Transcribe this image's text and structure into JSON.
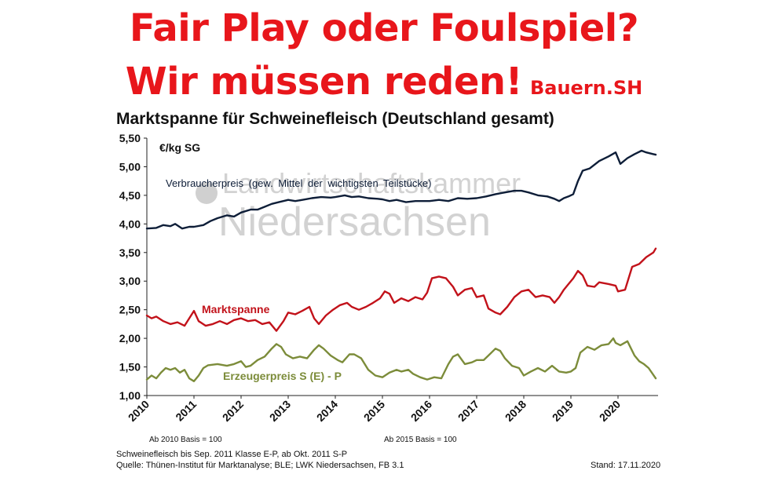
{
  "headline": {
    "line1": "Fair Play oder Foulspiel?",
    "line2": "Wir müssen reden!",
    "brand": "Bauern.SH"
  },
  "watermark": {
    "line1": "Landwirtschaftskammer",
    "line2": "Niedersachsen"
  },
  "notes": {
    "basis_2010": "Ab 2010 Basis = 100",
    "basis_2015": "Ab 2015 Basis = 100"
  },
  "footer": {
    "line1": "Schweinefleisch bis Sep. 2011 Klasse E-P, ab Okt. 2011 S-P",
    "line2": "Quelle: Thünen-Institut für Marktanalyse; BLE; LWK Niedersachsen, FB 3.1",
    "stand": "Stand: 17.11.2020"
  },
  "colors": {
    "headline": "#e8161b",
    "verbraucherpreis": "#0e1e38",
    "marktspanne": "#c2121a",
    "erzeugerpreis": "#7c8c3a"
  },
  "chart_data": {
    "type": "line",
    "title": "Marktspanne für Schweinefleisch (Deutschland gesamt)",
    "unit_label": "€/kg SG",
    "x_ticks": [
      "2010",
      "2011",
      "2012",
      "2013",
      "2014",
      "2015",
      "2016",
      "2017",
      "2018",
      "2019",
      "2020"
    ],
    "y_ticks": [
      "1,00",
      "1,50",
      "2,00",
      "2,50",
      "3,00",
      "3,50",
      "4,00",
      "4,50",
      "5,00",
      "5,50"
    ],
    "xlim": [
      2010,
      2020.85
    ],
    "ylim": [
      1.0,
      5.5
    ],
    "grid": false,
    "series": [
      {
        "name": "Verbraucherpreis (gew. Mittel der wichtigsten Teilstücke)",
        "color": "#0e1e38",
        "points": [
          [
            2010.0,
            3.92
          ],
          [
            2010.2,
            3.93
          ],
          [
            2010.35,
            3.98
          ],
          [
            2010.5,
            3.96
          ],
          [
            2010.6,
            4.0
          ],
          [
            2010.75,
            3.92
          ],
          [
            2010.9,
            3.95
          ],
          [
            2011.0,
            3.95
          ],
          [
            2011.2,
            3.98
          ],
          [
            2011.35,
            4.05
          ],
          [
            2011.5,
            4.1
          ],
          [
            2011.7,
            4.15
          ],
          [
            2011.85,
            4.13
          ],
          [
            2012.0,
            4.2
          ],
          [
            2012.2,
            4.25
          ],
          [
            2012.35,
            4.25
          ],
          [
            2012.5,
            4.3
          ],
          [
            2012.65,
            4.35
          ],
          [
            2012.8,
            4.38
          ],
          [
            2013.0,
            4.42
          ],
          [
            2013.15,
            4.4
          ],
          [
            2013.3,
            4.42
          ],
          [
            2013.5,
            4.45
          ],
          [
            2013.7,
            4.47
          ],
          [
            2013.9,
            4.46
          ],
          [
            2014.0,
            4.47
          ],
          [
            2014.2,
            4.5
          ],
          [
            2014.35,
            4.47
          ],
          [
            2014.5,
            4.48
          ],
          [
            2014.7,
            4.45
          ],
          [
            2014.9,
            4.44
          ],
          [
            2015.0,
            4.43
          ],
          [
            2015.15,
            4.4
          ],
          [
            2015.3,
            4.42
          ],
          [
            2015.5,
            4.38
          ],
          [
            2015.7,
            4.4
          ],
          [
            2015.9,
            4.4
          ],
          [
            2016.0,
            4.4
          ],
          [
            2016.2,
            4.42
          ],
          [
            2016.4,
            4.4
          ],
          [
            2016.6,
            4.45
          ],
          [
            2016.8,
            4.44
          ],
          [
            2017.0,
            4.45
          ],
          [
            2017.2,
            4.48
          ],
          [
            2017.4,
            4.52
          ],
          [
            2017.6,
            4.55
          ],
          [
            2017.8,
            4.58
          ],
          [
            2017.95,
            4.58
          ],
          [
            2018.1,
            4.55
          ],
          [
            2018.3,
            4.5
          ],
          [
            2018.5,
            4.48
          ],
          [
            2018.65,
            4.44
          ],
          [
            2018.75,
            4.4
          ],
          [
            2018.85,
            4.45
          ],
          [
            2018.95,
            4.48
          ],
          [
            2019.05,
            4.52
          ],
          [
            2019.15,
            4.75
          ],
          [
            2019.25,
            4.93
          ],
          [
            2019.4,
            4.97
          ],
          [
            2019.6,
            5.1
          ],
          [
            2019.8,
            5.18
          ],
          [
            2019.95,
            5.25
          ],
          [
            2020.05,
            5.05
          ],
          [
            2020.2,
            5.15
          ],
          [
            2020.35,
            5.22
          ],
          [
            2020.5,
            5.28
          ],
          [
            2020.6,
            5.25
          ],
          [
            2020.75,
            5.22
          ],
          [
            2020.8,
            5.21
          ]
        ]
      },
      {
        "name": "Marktspanne",
        "color": "#c2121a",
        "points": [
          [
            2010.0,
            2.4
          ],
          [
            2010.1,
            2.35
          ],
          [
            2010.2,
            2.38
          ],
          [
            2010.35,
            2.3
          ],
          [
            2010.5,
            2.25
          ],
          [
            2010.65,
            2.28
          ],
          [
            2010.8,
            2.22
          ],
          [
            2010.9,
            2.35
          ],
          [
            2011.0,
            2.48
          ],
          [
            2011.1,
            2.3
          ],
          [
            2011.25,
            2.22
          ],
          [
            2011.4,
            2.25
          ],
          [
            2011.55,
            2.3
          ],
          [
            2011.7,
            2.25
          ],
          [
            2011.85,
            2.32
          ],
          [
            2012.0,
            2.35
          ],
          [
            2012.15,
            2.3
          ],
          [
            2012.3,
            2.32
          ],
          [
            2012.45,
            2.25
          ],
          [
            2012.6,
            2.28
          ],
          [
            2012.75,
            2.13
          ],
          [
            2012.9,
            2.3
          ],
          [
            2013.0,
            2.45
          ],
          [
            2013.15,
            2.42
          ],
          [
            2013.3,
            2.48
          ],
          [
            2013.45,
            2.55
          ],
          [
            2013.55,
            2.35
          ],
          [
            2013.65,
            2.25
          ],
          [
            2013.8,
            2.4
          ],
          [
            2013.95,
            2.5
          ],
          [
            2014.1,
            2.58
          ],
          [
            2014.25,
            2.62
          ],
          [
            2014.35,
            2.55
          ],
          [
            2014.5,
            2.5
          ],
          [
            2014.65,
            2.55
          ],
          [
            2014.8,
            2.62
          ],
          [
            2014.95,
            2.7
          ],
          [
            2015.05,
            2.82
          ],
          [
            2015.15,
            2.78
          ],
          [
            2015.25,
            2.62
          ],
          [
            2015.4,
            2.7
          ],
          [
            2015.55,
            2.65
          ],
          [
            2015.7,
            2.72
          ],
          [
            2015.85,
            2.68
          ],
          [
            2015.95,
            2.8
          ],
          [
            2016.05,
            3.05
          ],
          [
            2016.2,
            3.08
          ],
          [
            2016.35,
            3.05
          ],
          [
            2016.5,
            2.9
          ],
          [
            2016.6,
            2.75
          ],
          [
            2016.75,
            2.85
          ],
          [
            2016.9,
            2.88
          ],
          [
            2017.0,
            2.72
          ],
          [
            2017.15,
            2.75
          ],
          [
            2017.25,
            2.52
          ],
          [
            2017.4,
            2.45
          ],
          [
            2017.5,
            2.42
          ],
          [
            2017.65,
            2.55
          ],
          [
            2017.8,
            2.72
          ],
          [
            2017.95,
            2.82
          ],
          [
            2018.1,
            2.85
          ],
          [
            2018.25,
            2.72
          ],
          [
            2018.4,
            2.75
          ],
          [
            2018.55,
            2.72
          ],
          [
            2018.65,
            2.62
          ],
          [
            2018.75,
            2.72
          ],
          [
            2018.85,
            2.85
          ],
          [
            2018.95,
            2.95
          ],
          [
            2019.05,
            3.05
          ],
          [
            2019.15,
            3.18
          ],
          [
            2019.25,
            3.1
          ],
          [
            2019.35,
            2.92
          ],
          [
            2019.5,
            2.9
          ],
          [
            2019.6,
            2.98
          ],
          [
            2019.8,
            2.95
          ],
          [
            2019.95,
            2.92
          ],
          [
            2020.0,
            2.82
          ],
          [
            2020.15,
            2.85
          ],
          [
            2020.3,
            3.25
          ],
          [
            2020.45,
            3.3
          ],
          [
            2020.6,
            3.42
          ],
          [
            2020.75,
            3.5
          ],
          [
            2020.8,
            3.57
          ]
        ]
      },
      {
        "name": "Erzeugerpreis S (E) - P",
        "color": "#7c8c3a",
        "points": [
          [
            2010.0,
            1.28
          ],
          [
            2010.1,
            1.35
          ],
          [
            2010.2,
            1.3
          ],
          [
            2010.3,
            1.4
          ],
          [
            2010.4,
            1.48
          ],
          [
            2010.5,
            1.45
          ],
          [
            2010.6,
            1.48
          ],
          [
            2010.7,
            1.4
          ],
          [
            2010.8,
            1.45
          ],
          [
            2010.9,
            1.3
          ],
          [
            2011.0,
            1.25
          ],
          [
            2011.1,
            1.35
          ],
          [
            2011.2,
            1.48
          ],
          [
            2011.3,
            1.53
          ],
          [
            2011.5,
            1.55
          ],
          [
            2011.7,
            1.52
          ],
          [
            2011.85,
            1.55
          ],
          [
            2012.0,
            1.6
          ],
          [
            2012.1,
            1.5
          ],
          [
            2012.2,
            1.52
          ],
          [
            2012.35,
            1.62
          ],
          [
            2012.5,
            1.68
          ],
          [
            2012.65,
            1.82
          ],
          [
            2012.75,
            1.9
          ],
          [
            2012.85,
            1.85
          ],
          [
            2012.95,
            1.72
          ],
          [
            2013.1,
            1.65
          ],
          [
            2013.25,
            1.68
          ],
          [
            2013.4,
            1.65
          ],
          [
            2013.55,
            1.8
          ],
          [
            2013.65,
            1.88
          ],
          [
            2013.75,
            1.82
          ],
          [
            2013.9,
            1.7
          ],
          [
            2014.05,
            1.62
          ],
          [
            2014.15,
            1.58
          ],
          [
            2014.3,
            1.72
          ],
          [
            2014.4,
            1.72
          ],
          [
            2014.55,
            1.65
          ],
          [
            2014.7,
            1.45
          ],
          [
            2014.85,
            1.35
          ],
          [
            2015.0,
            1.32
          ],
          [
            2015.15,
            1.4
          ],
          [
            2015.3,
            1.45
          ],
          [
            2015.4,
            1.42
          ],
          [
            2015.55,
            1.45
          ],
          [
            2015.65,
            1.38
          ],
          [
            2015.8,
            1.32
          ],
          [
            2015.95,
            1.28
          ],
          [
            2016.1,
            1.32
          ],
          [
            2016.25,
            1.3
          ],
          [
            2016.4,
            1.55
          ],
          [
            2016.5,
            1.68
          ],
          [
            2016.6,
            1.72
          ],
          [
            2016.75,
            1.55
          ],
          [
            2016.9,
            1.58
          ],
          [
            2017.0,
            1.62
          ],
          [
            2017.15,
            1.62
          ],
          [
            2017.25,
            1.7
          ],
          [
            2017.4,
            1.82
          ],
          [
            2017.5,
            1.78
          ],
          [
            2017.6,
            1.65
          ],
          [
            2017.75,
            1.52
          ],
          [
            2017.9,
            1.48
          ],
          [
            2018.0,
            1.35
          ],
          [
            2018.15,
            1.42
          ],
          [
            2018.3,
            1.48
          ],
          [
            2018.45,
            1.42
          ],
          [
            2018.6,
            1.52
          ],
          [
            2018.75,
            1.42
          ],
          [
            2018.9,
            1.4
          ],
          [
            2019.0,
            1.42
          ],
          [
            2019.1,
            1.48
          ],
          [
            2019.2,
            1.75
          ],
          [
            2019.35,
            1.85
          ],
          [
            2019.5,
            1.8
          ],
          [
            2019.65,
            1.88
          ],
          [
            2019.8,
            1.9
          ],
          [
            2019.9,
            2.0
          ],
          [
            2019.95,
            1.92
          ],
          [
            2020.05,
            1.88
          ],
          [
            2020.2,
            1.95
          ],
          [
            2020.35,
            1.7
          ],
          [
            2020.45,
            1.6
          ],
          [
            2020.55,
            1.55
          ],
          [
            2020.65,
            1.48
          ],
          [
            2020.8,
            1.3
          ]
        ]
      }
    ]
  }
}
